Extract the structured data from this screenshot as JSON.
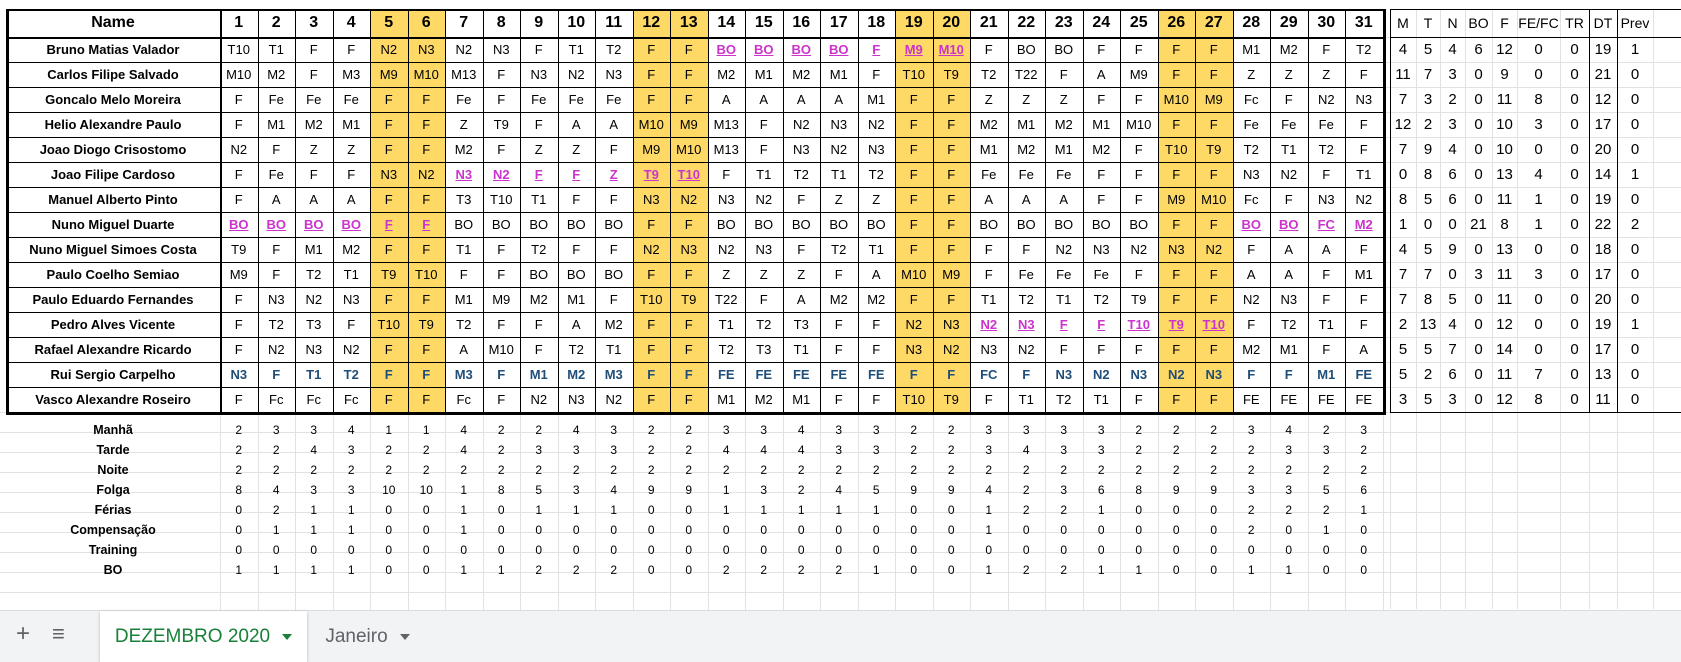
{
  "sheet": {
    "name_header": "Name",
    "days": [
      "1",
      "2",
      "3",
      "4",
      "5",
      "6",
      "7",
      "8",
      "9",
      "10",
      "11",
      "12",
      "13",
      "14",
      "15",
      "16",
      "17",
      "18",
      "19",
      "20",
      "21",
      "22",
      "23",
      "24",
      "25",
      "26",
      "27",
      "28",
      "29",
      "30",
      "31"
    ],
    "weekend_cols": [
      5,
      6,
      12,
      13,
      19,
      20,
      26,
      27
    ],
    "rows": [
      {
        "name": "Bruno Matias Valador",
        "cells": [
          "T10",
          "T1",
          "F",
          "F",
          "N2",
          "N3",
          "N2",
          "N3",
          "F",
          "T1",
          "T2",
          "F",
          "F",
          "BO",
          "BO",
          "BO",
          "BO",
          "F",
          "M9",
          "M10",
          "F",
          "BO",
          "BO",
          "F",
          "F",
          "F",
          "F",
          "M1",
          "M2",
          "F",
          "T2"
        ],
        "pink": [
          14,
          15,
          16,
          17,
          18,
          19,
          20
        ]
      },
      {
        "name": "Carlos Filipe Salvado",
        "cells": [
          "M10",
          "M2",
          "F",
          "M3",
          "M9",
          "M10",
          "M13",
          "F",
          "N3",
          "N2",
          "N3",
          "F",
          "F",
          "M2",
          "M1",
          "M2",
          "M1",
          "F",
          "T10",
          "T9",
          "T2",
          "T22",
          "F",
          "A",
          "M9",
          "F",
          "F",
          "Z",
          "Z",
          "Z",
          "F"
        ]
      },
      {
        "name": "Goncalo Melo Moreira",
        "cells": [
          "F",
          "Fe",
          "Fe",
          "Fe",
          "F",
          "F",
          "Fe",
          "F",
          "Fe",
          "Fe",
          "Fe",
          "F",
          "F",
          "A",
          "A",
          "A",
          "A",
          "M1",
          "F",
          "F",
          "Z",
          "Z",
          "Z",
          "F",
          "F",
          "M10",
          "M9",
          "Fc",
          "F",
          "N2",
          "N3"
        ]
      },
      {
        "name": "Helio Alexandre Paulo",
        "cells": [
          "F",
          "M1",
          "M2",
          "M1",
          "F",
          "F",
          "Z",
          "T9",
          "F",
          "A",
          "A",
          "M10",
          "M9",
          "M13",
          "F",
          "N2",
          "N3",
          "N2",
          "F",
          "F",
          "M2",
          "M1",
          "M2",
          "M1",
          "M10",
          "F",
          "F",
          "Fe",
          "Fe",
          "Fe",
          "F"
        ]
      },
      {
        "name": "Joao Diogo Crisostomo",
        "cells": [
          "N2",
          "F",
          "Z",
          "Z",
          "F",
          "F",
          "M2",
          "F",
          "Z",
          "Z",
          "F",
          "M9",
          "M10",
          "M13",
          "F",
          "N3",
          "N2",
          "N3",
          "F",
          "F",
          "M1",
          "M2",
          "M1",
          "M2",
          "F",
          "T10",
          "T9",
          "T2",
          "T1",
          "T2",
          "F"
        ]
      },
      {
        "name": "Joao Filipe Cardoso",
        "cells": [
          "F",
          "Fe",
          "F",
          "F",
          "N3",
          "N2",
          "N3",
          "N2",
          "F",
          "F",
          "Z",
          "T9",
          "T10",
          "F",
          "T1",
          "T2",
          "T1",
          "T2",
          "F",
          "F",
          "Fe",
          "Fe",
          "Fe",
          "F",
          "F",
          "F",
          "F",
          "N3",
          "N2",
          "F",
          "T1"
        ],
        "pink": [
          7,
          8,
          9,
          10,
          11,
          12,
          13
        ]
      },
      {
        "name": "Manuel Alberto Pinto",
        "cells": [
          "F",
          "A",
          "A",
          "A",
          "F",
          "F",
          "T3",
          "T10",
          "T1",
          "F",
          "F",
          "N3",
          "N2",
          "N3",
          "N2",
          "F",
          "Z",
          "Z",
          "F",
          "F",
          "A",
          "A",
          "A",
          "F",
          "F",
          "M9",
          "M10",
          "Fc",
          "F",
          "N3",
          "N2"
        ]
      },
      {
        "name": "Nuno Miguel Duarte",
        "cells": [
          "BO",
          "BO",
          "BO",
          "BO",
          "F",
          "F",
          "BO",
          "BO",
          "BO",
          "BO",
          "BO",
          "F",
          "F",
          "BO",
          "BO",
          "BO",
          "BO",
          "BO",
          "F",
          "F",
          "BO",
          "BO",
          "BO",
          "BO",
          "BO",
          "F",
          "F",
          "BO",
          "BO",
          "FC",
          "M2"
        ],
        "pink": [
          1,
          2,
          3,
          4,
          5,
          6,
          28,
          29,
          30,
          31
        ]
      },
      {
        "name": "Nuno Miguel Simoes Costa",
        "cells": [
          "T9",
          "F",
          "M1",
          "M2",
          "F",
          "F",
          "T1",
          "F",
          "T2",
          "F",
          "F",
          "N2",
          "N3",
          "N2",
          "N3",
          "F",
          "T2",
          "T1",
          "F",
          "F",
          "F",
          "F",
          "N2",
          "N3",
          "N2",
          "N3",
          "N2",
          "F",
          "A",
          "A",
          "F"
        ]
      },
      {
        "name": "Paulo Coelho Semiao",
        "cells": [
          "M9",
          "F",
          "T2",
          "T1",
          "T9",
          "T10",
          "F",
          "F",
          "BO",
          "BO",
          "BO",
          "F",
          "F",
          "Z",
          "Z",
          "Z",
          "F",
          "A",
          "M10",
          "M9",
          "F",
          "Fe",
          "Fe",
          "Fe",
          "F",
          "F",
          "F",
          "A",
          "A",
          "F",
          "M1"
        ]
      },
      {
        "name": "Paulo Eduardo Fernandes",
        "cells": [
          "F",
          "N3",
          "N2",
          "N3",
          "F",
          "F",
          "M1",
          "M9",
          "M2",
          "M1",
          "F",
          "T10",
          "T9",
          "T22",
          "F",
          "A",
          "M2",
          "M2",
          "F",
          "F",
          "T1",
          "T2",
          "T1",
          "T2",
          "T9",
          "F",
          "F",
          "N2",
          "N3",
          "F",
          "F"
        ]
      },
      {
        "name": "Pedro Alves Vicente",
        "cells": [
          "F",
          "T2",
          "T3",
          "F",
          "T10",
          "T9",
          "T2",
          "F",
          "F",
          "A",
          "M2",
          "F",
          "F",
          "T1",
          "T2",
          "T3",
          "F",
          "F",
          "N2",
          "N3",
          "N2",
          "N3",
          "F",
          "F",
          "T10",
          "T9",
          "T10",
          "F",
          "T2",
          "T1",
          "F"
        ],
        "pink": [
          21,
          22,
          23,
          24,
          25,
          26,
          27
        ]
      },
      {
        "name": "Rafael Alexandre Ricardo",
        "cells": [
          "F",
          "N2",
          "N3",
          "N2",
          "F",
          "F",
          "A",
          "M10",
          "F",
          "T2",
          "T1",
          "F",
          "F",
          "T2",
          "T3",
          "T1",
          "F",
          "F",
          "N3",
          "N2",
          "N3",
          "N2",
          "F",
          "F",
          "F",
          "F",
          "F",
          "M2",
          "M1",
          "F",
          "A"
        ]
      },
      {
        "name": "Rui Sergio Carpelho",
        "cells": [
          "N3",
          "F",
          "T1",
          "T2",
          "F",
          "F",
          "M3",
          "F",
          "M1",
          "M2",
          "M3",
          "F",
          "F",
          "FE",
          "FE",
          "FE",
          "FE",
          "FE",
          "F",
          "F",
          "FC",
          "F",
          "N3",
          "N2",
          "N3",
          "N2",
          "N3",
          "F",
          "F",
          "M1",
          "FE"
        ],
        "blue": true
      },
      {
        "name": "Vasco Alexandre Roseiro",
        "cells": [
          "F",
          "Fc",
          "Fc",
          "Fc",
          "F",
          "F",
          "Fc",
          "F",
          "N2",
          "N3",
          "N2",
          "F",
          "F",
          "M1",
          "M2",
          "M1",
          "F",
          "F",
          "T10",
          "T9",
          "F",
          "T1",
          "T2",
          "T1",
          "F",
          "F",
          "F",
          "FE",
          "FE",
          "FE",
          "FE"
        ]
      }
    ]
  },
  "stats": {
    "headers": [
      "M",
      "T",
      "N",
      "BO",
      "F",
      "FE/FC",
      "TR",
      "DT",
      "Prev"
    ],
    "rows": [
      [
        "4",
        "5",
        "4",
        "6",
        "12",
        "0",
        "0",
        "19",
        "1"
      ],
      [
        "11",
        "7",
        "3",
        "0",
        "9",
        "0",
        "0",
        "21",
        "0"
      ],
      [
        "7",
        "3",
        "2",
        "0",
        "11",
        "8",
        "0",
        "12",
        "0"
      ],
      [
        "12",
        "2",
        "3",
        "0",
        "10",
        "3",
        "0",
        "17",
        "0"
      ],
      [
        "7",
        "9",
        "4",
        "0",
        "10",
        "0",
        "0",
        "20",
        "0"
      ],
      [
        "0",
        "8",
        "6",
        "0",
        "13",
        "4",
        "0",
        "14",
        "1"
      ],
      [
        "8",
        "5",
        "6",
        "0",
        "11",
        "1",
        "0",
        "19",
        "0"
      ],
      [
        "1",
        "0",
        "0",
        "21",
        "8",
        "1",
        "0",
        "22",
        "2"
      ],
      [
        "4",
        "5",
        "9",
        "0",
        "13",
        "0",
        "0",
        "18",
        "0"
      ],
      [
        "7",
        "7",
        "0",
        "3",
        "11",
        "3",
        "0",
        "17",
        "0"
      ],
      [
        "7",
        "8",
        "5",
        "0",
        "11",
        "0",
        "0",
        "20",
        "0"
      ],
      [
        "2",
        "13",
        "4",
        "0",
        "12",
        "0",
        "0",
        "19",
        "1"
      ],
      [
        "5",
        "5",
        "7",
        "0",
        "14",
        "0",
        "0",
        "17",
        "0"
      ],
      [
        "5",
        "2",
        "6",
        "0",
        "11",
        "7",
        "0",
        "13",
        "0"
      ],
      [
        "3",
        "5",
        "3",
        "0",
        "12",
        "8",
        "0",
        "11",
        "0"
      ]
    ]
  },
  "summary": [
    {
      "label": "Manhã",
      "values": [
        "2",
        "3",
        "3",
        "4",
        "1",
        "1",
        "4",
        "2",
        "2",
        "4",
        "3",
        "2",
        "2",
        "3",
        "3",
        "4",
        "3",
        "3",
        "2",
        "2",
        "3",
        "3",
        "3",
        "3",
        "2",
        "2",
        "2",
        "3",
        "4",
        "2",
        "3"
      ]
    },
    {
      "label": "Tarde",
      "values": [
        "2",
        "2",
        "4",
        "3",
        "2",
        "2",
        "4",
        "2",
        "3",
        "3",
        "3",
        "2",
        "2",
        "4",
        "4",
        "4",
        "3",
        "3",
        "2",
        "2",
        "3",
        "4",
        "3",
        "3",
        "2",
        "2",
        "2",
        "2",
        "3",
        "3",
        "2"
      ]
    },
    {
      "label": "Noite",
      "values": [
        "2",
        "2",
        "2",
        "2",
        "2",
        "2",
        "2",
        "2",
        "2",
        "2",
        "2",
        "2",
        "2",
        "2",
        "2",
        "2",
        "2",
        "2",
        "2",
        "2",
        "2",
        "2",
        "2",
        "2",
        "2",
        "2",
        "2",
        "2",
        "2",
        "2",
        "2"
      ]
    },
    {
      "label": "Folga",
      "values": [
        "8",
        "4",
        "3",
        "3",
        "10",
        "10",
        "1",
        "8",
        "5",
        "3",
        "4",
        "9",
        "9",
        "1",
        "3",
        "2",
        "4",
        "5",
        "9",
        "9",
        "4",
        "2",
        "3",
        "6",
        "8",
        "9",
        "9",
        "3",
        "3",
        "5",
        "6"
      ]
    },
    {
      "label": "Férias",
      "values": [
        "0",
        "2",
        "1",
        "1",
        "0",
        "0",
        "1",
        "0",
        "1",
        "1",
        "1",
        "0",
        "0",
        "1",
        "1",
        "1",
        "1",
        "1",
        "0",
        "0",
        "1",
        "2",
        "2",
        "1",
        "0",
        "0",
        "0",
        "2",
        "2",
        "2",
        "1"
      ]
    },
    {
      "label": "Compensação",
      "values": [
        "0",
        "1",
        "1",
        "1",
        "0",
        "0",
        "1",
        "0",
        "0",
        "0",
        "0",
        "0",
        "0",
        "0",
        "0",
        "0",
        "0",
        "0",
        "0",
        "0",
        "1",
        "0",
        "0",
        "0",
        "0",
        "0",
        "0",
        "2",
        "0",
        "1",
        "0"
      ]
    },
    {
      "label": "Training",
      "values": [
        "0",
        "0",
        "0",
        "0",
        "0",
        "0",
        "0",
        "0",
        "0",
        "0",
        "0",
        "0",
        "0",
        "0",
        "0",
        "0",
        "0",
        "0",
        "0",
        "0",
        "0",
        "0",
        "0",
        "0",
        "0",
        "0",
        "0",
        "0",
        "0",
        "0",
        "0"
      ]
    },
    {
      "label": "BO",
      "values": [
        "1",
        "1",
        "1",
        "1",
        "0",
        "0",
        "1",
        "1",
        "2",
        "2",
        "2",
        "0",
        "0",
        "2",
        "2",
        "2",
        "2",
        "1",
        "0",
        "0",
        "1",
        "2",
        "2",
        "1",
        "1",
        "0",
        "0",
        "1",
        "1",
        "0",
        "0"
      ]
    }
  ],
  "tabs": {
    "add_icon": "plus-icon",
    "list_icon": "menu-icon",
    "items": [
      {
        "label": "DEZEMBRO 2020",
        "active": true
      },
      {
        "label": "Janeiro",
        "active": false
      }
    ],
    "active_color": "#188038"
  },
  "colors": {
    "weekend": "#ffd966",
    "pink_code": "#cc33cc",
    "blue_code": "#1f4e79"
  }
}
